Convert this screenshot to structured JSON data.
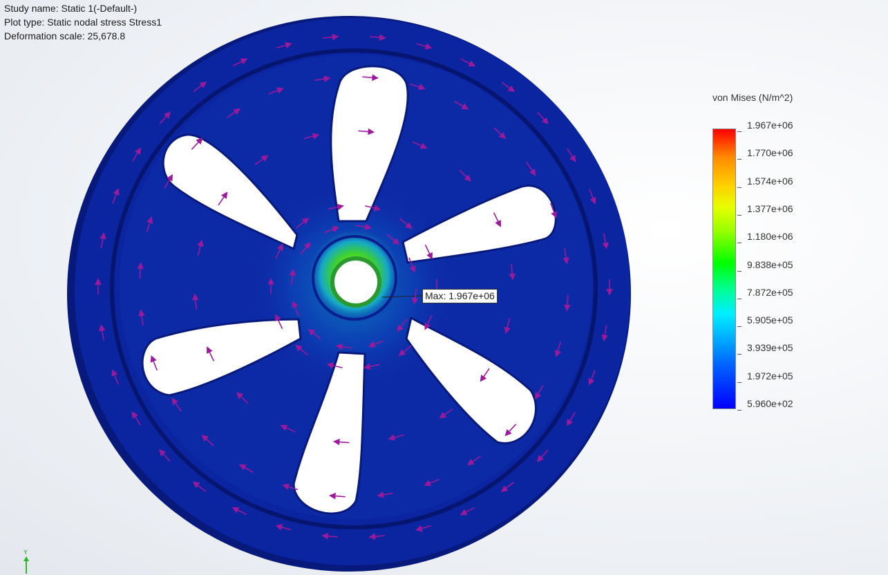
{
  "study_info": {
    "study_name": "Study name: Static 1(-Default-)",
    "plot_type": "Plot type: Static nodal stress Stress1",
    "deformation_scale": "Deformation scale: 25,678.8"
  },
  "legend": {
    "title": "von Mises (N/m^2)",
    "labels": [
      "1.967e+06",
      "1.770e+06",
      "1.574e+06",
      "1.377e+06",
      "1.180e+06",
      "9.838e+05",
      "7.872e+05",
      "5.905e+05",
      "3.939e+05",
      "1.972e+05",
      "5.960e+02"
    ],
    "max_color": "#ff0000",
    "min_color": "#0000ff"
  },
  "max_callout": "Max: 1.967e+06",
  "triad": {
    "y_label": "Y"
  },
  "colors": {
    "part_body": "#0d2aa6",
    "part_rim": "#082090",
    "arrows": "#9b1a9b",
    "hub_stress": "#4fd02a"
  }
}
